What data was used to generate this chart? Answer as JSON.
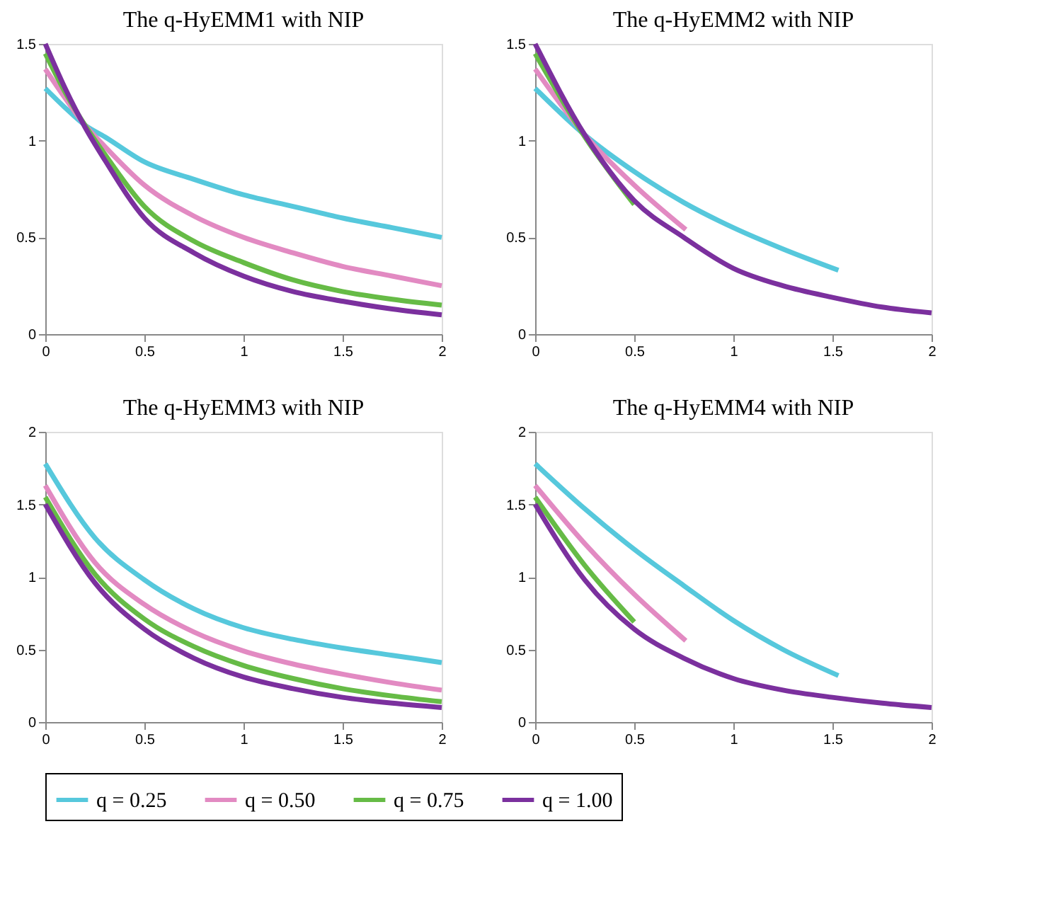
{
  "chart_data": [
    {
      "type": "line",
      "title": "The q-HyEMM1 with NIP",
      "xlim": [
        0,
        2
      ],
      "ylim": [
        0,
        1.5
      ],
      "xticks": [
        0,
        0.5,
        1,
        1.5,
        2
      ],
      "yticks": [
        0,
        0.5,
        1,
        1.5
      ],
      "legend": "bottom",
      "series": [
        {
          "name": "q = 0.25",
          "color": "#56c8dc",
          "x": [
            0,
            0.1,
            0.2,
            0.3,
            0.5,
            0.75,
            1,
            1.25,
            1.5,
            1.75,
            2
          ],
          "values": [
            1.27,
            1.17,
            1.08,
            1.02,
            0.89,
            0.8,
            0.72,
            0.66,
            0.6,
            0.55,
            0.5
          ]
        },
        {
          "name": "q = 0.50",
          "color": "#e28ac2",
          "x": [
            0,
            0.1,
            0.2,
            0.3,
            0.5,
            0.75,
            1,
            1.25,
            1.5,
            1.75,
            2
          ],
          "values": [
            1.37,
            1.22,
            1.08,
            0.97,
            0.77,
            0.61,
            0.5,
            0.42,
            0.35,
            0.3,
            0.25
          ]
        },
        {
          "name": "q = 0.75",
          "color": "#66bb46",
          "x": [
            0,
            0.1,
            0.2,
            0.3,
            0.5,
            0.75,
            1,
            1.25,
            1.5,
            1.75,
            2
          ],
          "values": [
            1.45,
            1.25,
            1.08,
            0.93,
            0.66,
            0.48,
            0.37,
            0.28,
            0.22,
            0.18,
            0.15
          ]
        },
        {
          "name": "q = 1.00",
          "color": "#7b309e",
          "x": [
            0,
            0.1,
            0.2,
            0.3,
            0.5,
            0.75,
            1,
            1.25,
            1.5,
            1.75,
            2
          ],
          "values": [
            1.5,
            1.27,
            1.07,
            0.9,
            0.6,
            0.42,
            0.3,
            0.22,
            0.17,
            0.13,
            0.1
          ]
        }
      ]
    },
    {
      "type": "line",
      "title": "The q-HyEMM2 with NIP",
      "xlim": [
        0,
        2
      ],
      "ylim": [
        0,
        1.5
      ],
      "xticks": [
        0,
        0.5,
        1,
        1.5,
        2
      ],
      "yticks": [
        0,
        0.5,
        1,
        1.5
      ],
      "legend": "bottom",
      "series": [
        {
          "name": "q = 0.25",
          "color": "#56c8dc",
          "x": [
            0,
            0.25,
            0.5,
            0.75,
            1,
            1.25,
            1.53
          ],
          "values": [
            1.27,
            1.03,
            0.84,
            0.68,
            0.55,
            0.44,
            0.33
          ]
        },
        {
          "name": "q = 0.50",
          "color": "#e28ac2",
          "x": [
            0,
            0.25,
            0.5,
            0.76
          ],
          "values": [
            1.37,
            1.03,
            0.77,
            0.54
          ]
        },
        {
          "name": "q = 0.75",
          "color": "#66bb46",
          "x": [
            0,
            0.25,
            0.5
          ],
          "values": [
            1.45,
            1.02,
            0.67
          ]
        },
        {
          "name": "q = 1.00",
          "color": "#7b309e",
          "x": [
            0,
            0.25,
            0.5,
            0.75,
            1,
            1.25,
            1.5,
            1.75,
            2
          ],
          "values": [
            1.5,
            1.03,
            0.69,
            0.5,
            0.34,
            0.25,
            0.19,
            0.14,
            0.11
          ]
        }
      ]
    },
    {
      "type": "line",
      "title": "The q-HyEMM3 with NIP",
      "xlim": [
        0,
        2
      ],
      "ylim": [
        0,
        2
      ],
      "xticks": [
        0,
        0.5,
        1,
        1.5,
        2
      ],
      "yticks": [
        0,
        0.5,
        1,
        1.5,
        2
      ],
      "legend": "bottom",
      "series": [
        {
          "name": "q = 0.25",
          "color": "#56c8dc",
          "x": [
            0,
            0.25,
            0.5,
            0.75,
            1,
            1.25,
            1.5,
            1.75,
            2
          ],
          "values": [
            1.78,
            1.27,
            0.98,
            0.78,
            0.65,
            0.57,
            0.51,
            0.46,
            0.41
          ]
        },
        {
          "name": "q = 0.50",
          "color": "#e28ac2",
          "x": [
            0,
            0.25,
            0.5,
            0.75,
            1,
            1.25,
            1.5,
            1.75,
            2
          ],
          "values": [
            1.63,
            1.1,
            0.81,
            0.62,
            0.49,
            0.4,
            0.33,
            0.27,
            0.22
          ]
        },
        {
          "name": "q = 0.75",
          "color": "#66bb46",
          "x": [
            0,
            0.25,
            0.5,
            0.75,
            1,
            1.25,
            1.5,
            1.75,
            2
          ],
          "values": [
            1.55,
            1.02,
            0.71,
            0.52,
            0.39,
            0.3,
            0.23,
            0.18,
            0.14
          ]
        },
        {
          "name": "q = 1.00",
          "color": "#7b309e",
          "x": [
            0,
            0.25,
            0.5,
            0.75,
            1,
            1.25,
            1.5,
            1.75,
            2
          ],
          "values": [
            1.5,
            0.96,
            0.64,
            0.44,
            0.31,
            0.23,
            0.17,
            0.13,
            0.1
          ]
        }
      ]
    },
    {
      "type": "line",
      "title": "The q-HyEMM4 with NIP",
      "xlim": [
        0,
        2
      ],
      "ylim": [
        0,
        2
      ],
      "xticks": [
        0,
        0.5,
        1,
        1.5,
        2
      ],
      "yticks": [
        0,
        0.5,
        1,
        1.5,
        2
      ],
      "legend": "bottom",
      "series": [
        {
          "name": "q = 0.25",
          "color": "#56c8dc",
          "x": [
            0,
            0.25,
            0.5,
            0.75,
            1,
            1.25,
            1.53
          ],
          "values": [
            1.78,
            1.47,
            1.19,
            0.94,
            0.7,
            0.5,
            0.32
          ]
        },
        {
          "name": "q = 0.50",
          "color": "#e28ac2",
          "x": [
            0,
            0.25,
            0.5,
            0.76
          ],
          "values": [
            1.63,
            1.23,
            0.88,
            0.56
          ]
        },
        {
          "name": "q = 0.75",
          "color": "#66bb46",
          "x": [
            0,
            0.25,
            0.5
          ],
          "values": [
            1.55,
            1.08,
            0.69
          ]
        },
        {
          "name": "q = 1.00",
          "color": "#7b309e",
          "x": [
            0,
            0.25,
            0.5,
            0.75,
            1,
            1.25,
            1.5,
            1.75,
            2
          ],
          "values": [
            1.5,
            0.98,
            0.64,
            0.44,
            0.3,
            0.22,
            0.17,
            0.13,
            0.1
          ]
        }
      ]
    }
  ]
}
